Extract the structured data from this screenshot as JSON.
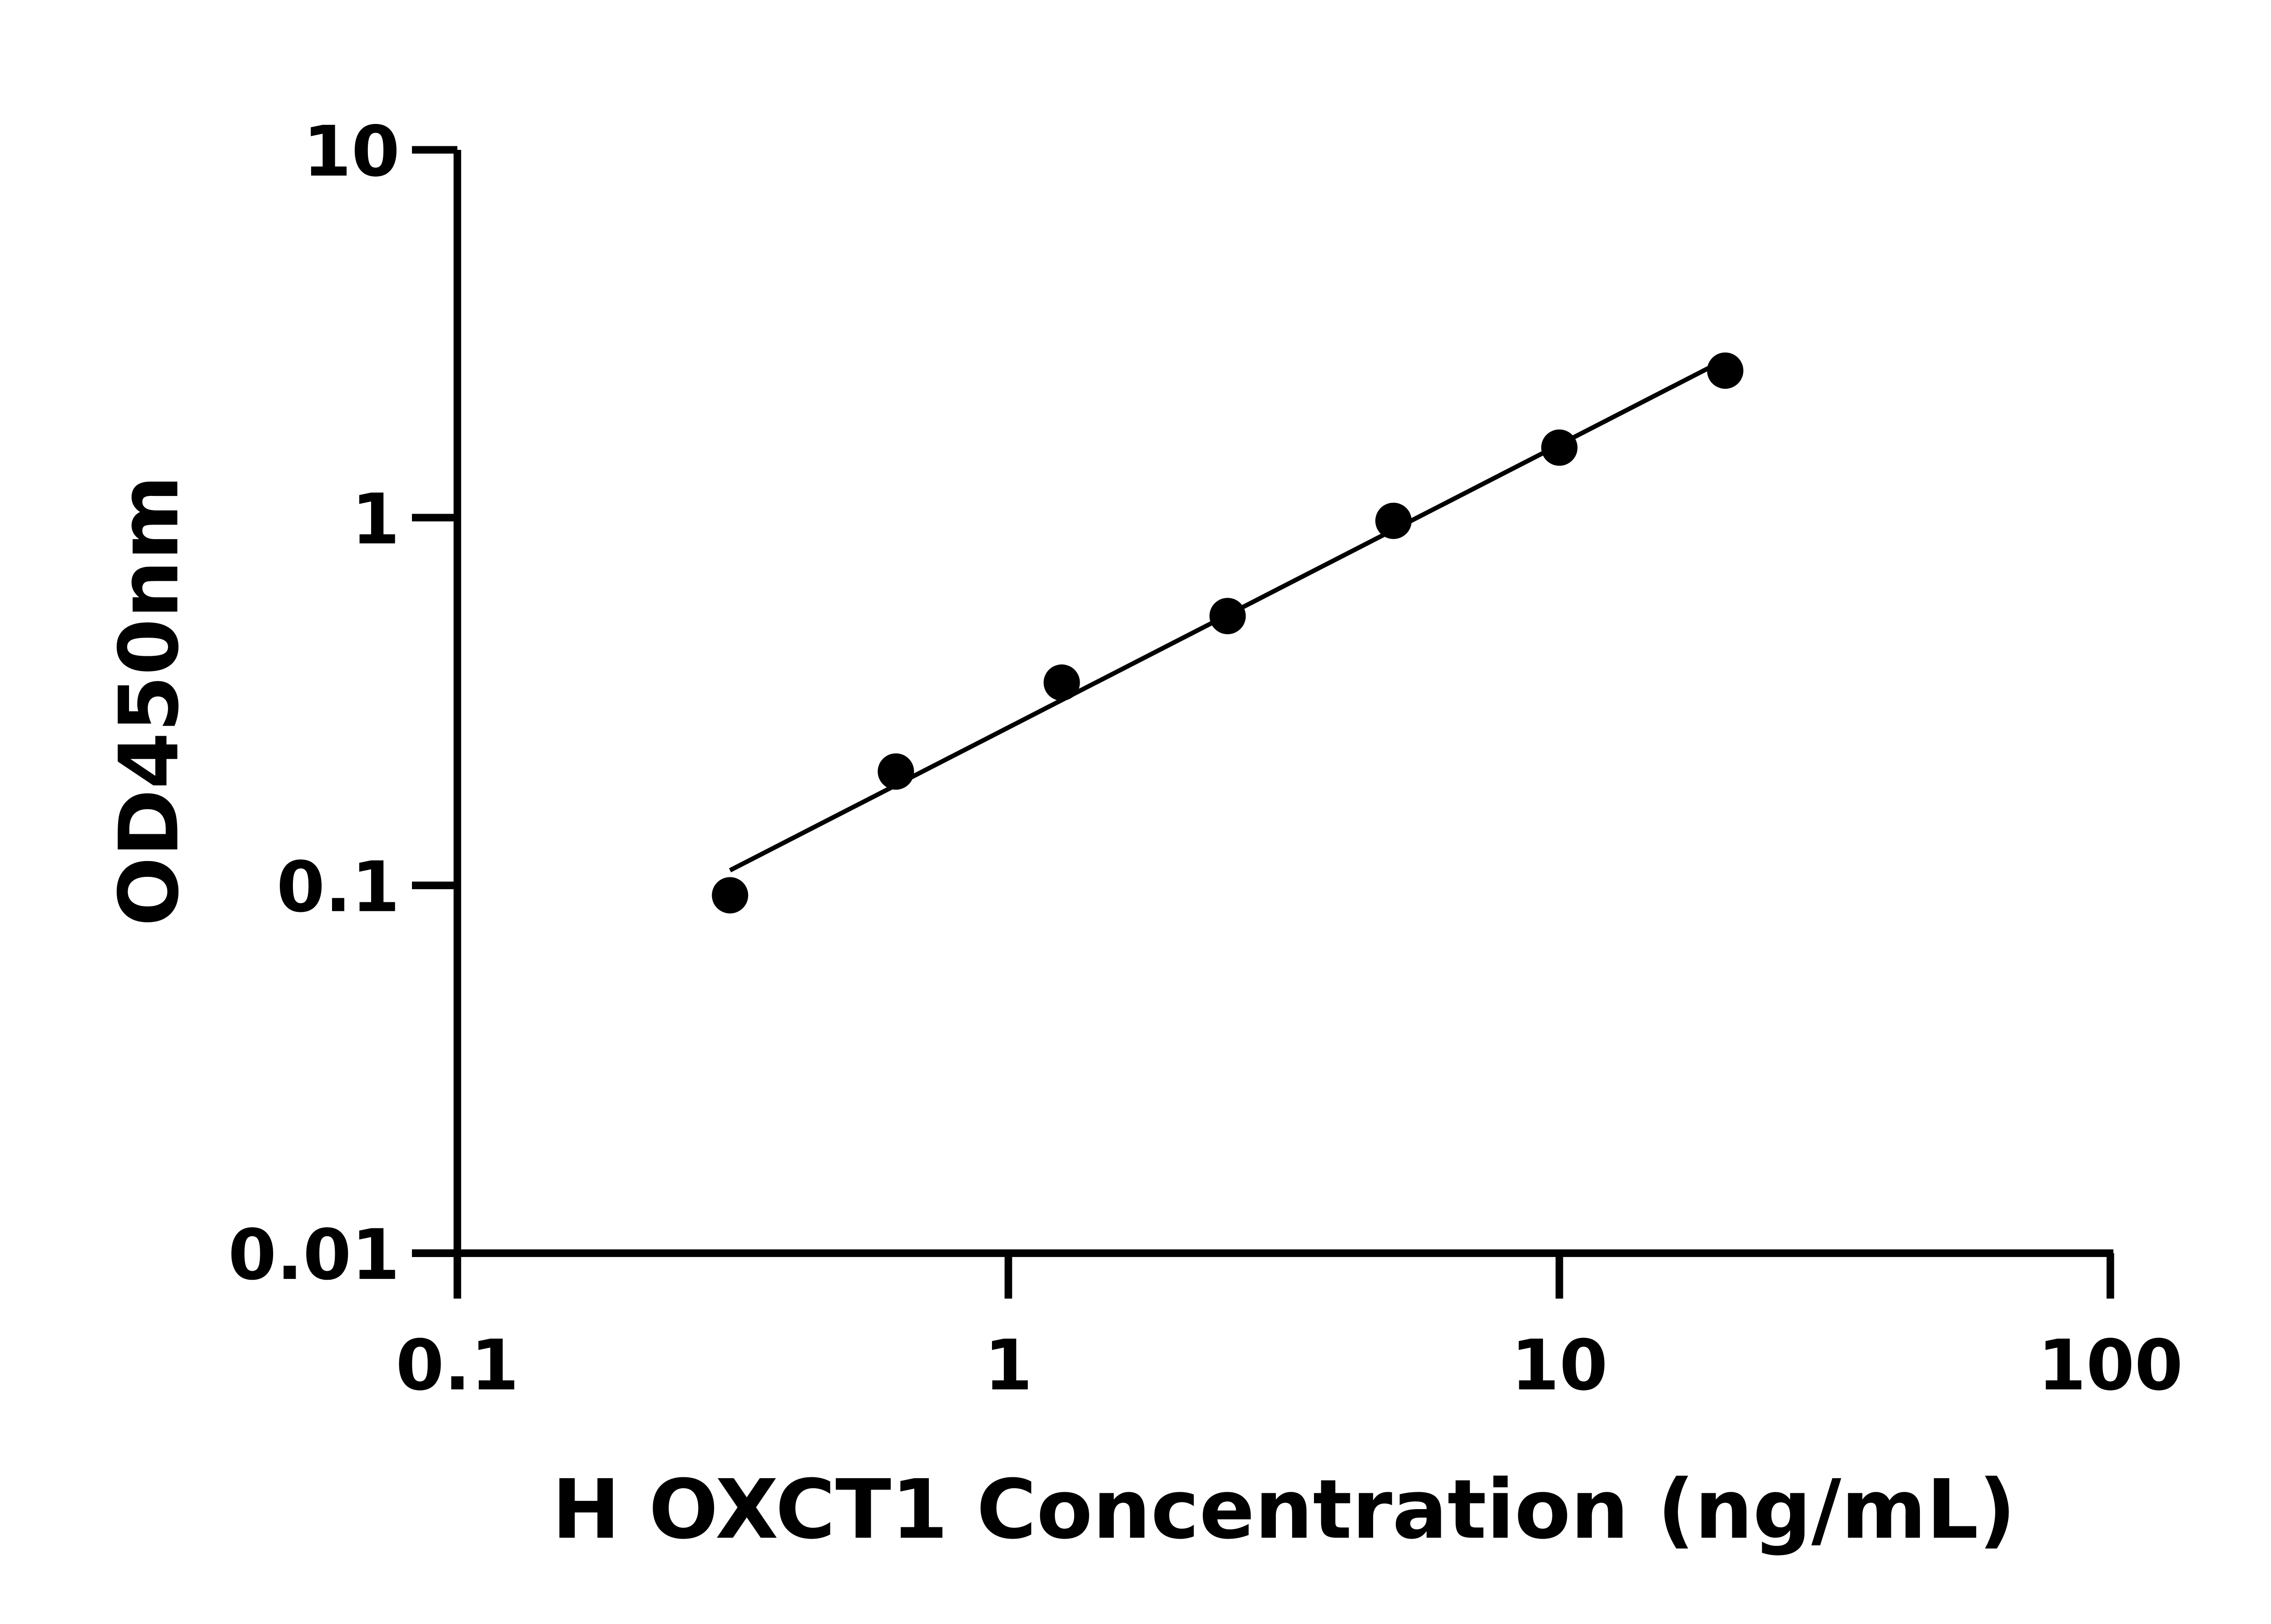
{
  "chart_data": {
    "type": "scatter",
    "title": "",
    "xlabel": "H OXCT1 Concentration (ng/mL)",
    "ylabel": "OD450nm",
    "x_scale": "log",
    "y_scale": "log",
    "xlim": [
      0.1,
      100
    ],
    "ylim": [
      0.01,
      10
    ],
    "x_ticks": [
      "0.1",
      "1",
      "10",
      "100"
    ],
    "y_ticks": [
      "0.01",
      "0.1",
      "1",
      "10"
    ],
    "grid": false,
    "legend": "none",
    "fit_line": true,
    "marker_color": "#000000",
    "points": [
      {
        "x": 0.3125,
        "y": 0.094
      },
      {
        "x": 0.625,
        "y": 0.204
      },
      {
        "x": 1.25,
        "y": 0.356
      },
      {
        "x": 2.5,
        "y": 0.54
      },
      {
        "x": 5,
        "y": 0.98
      },
      {
        "x": 10,
        "y": 1.55
      },
      {
        "x": 20,
        "y": 2.51
      }
    ]
  }
}
